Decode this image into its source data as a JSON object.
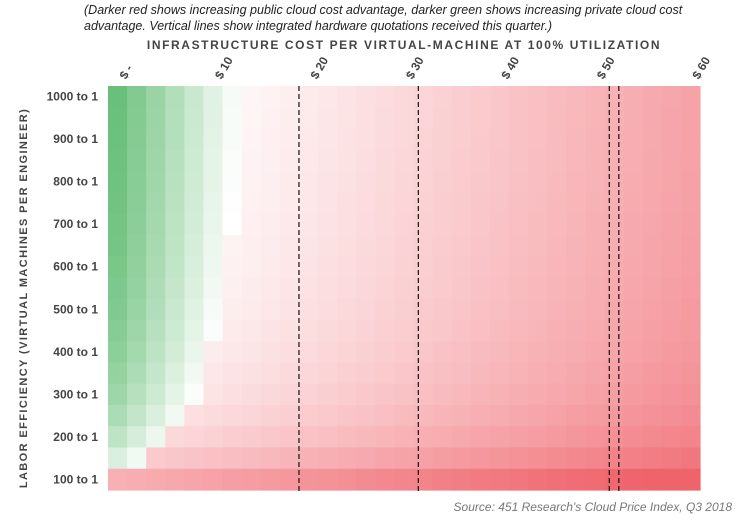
{
  "subtitle": "(Darker red shows increasing public cloud cost advantage, darker green shows increasing private cloud cost advantage. Vertical lines show integrated hardware quotations received this quarter.)",
  "source": "Source: 451 Research's Cloud Price Index, Q3 2018",
  "chart_data": {
    "type": "heatmap",
    "title": "",
    "xlabel": "INFRASTRUCTURE COST PER VIRTUAL-MACHINE AT 100% UTILIZATION",
    "ylabel": "LABOR EFFICIENCY (VIRTUAL MACHINES PER ENGINEER)",
    "x_range": [
      0,
      62
    ],
    "x_step": 2,
    "x_ticks": [
      {
        "value": 0,
        "label": "$ -"
      },
      {
        "value": 10,
        "label": "$ 10"
      },
      {
        "value": 20,
        "label": "$ 20"
      },
      {
        "value": 30,
        "label": "$ 30"
      },
      {
        "value": 40,
        "label": "$ 40"
      },
      {
        "value": 50,
        "label": "$ 50"
      },
      {
        "value": 60,
        "label": "$ 60"
      }
    ],
    "y_categories": [
      {
        "value": 1000,
        "label": "1000 to 1"
      },
      {
        "value": 950,
        "label": ""
      },
      {
        "value": 900,
        "label": "900 to 1"
      },
      {
        "value": 850,
        "label": ""
      },
      {
        "value": 800,
        "label": "800 to 1"
      },
      {
        "value": 750,
        "label": ""
      },
      {
        "value": 700,
        "label": "700 to 1"
      },
      {
        "value": 650,
        "label": ""
      },
      {
        "value": 600,
        "label": "600 to 1"
      },
      {
        "value": 550,
        "label": ""
      },
      {
        "value": 500,
        "label": "500 to 1"
      },
      {
        "value": 450,
        "label": ""
      },
      {
        "value": 400,
        "label": "400 to 1"
      },
      {
        "value": 350,
        "label": ""
      },
      {
        "value": 300,
        "label": "300 to 1"
      },
      {
        "value": 250,
        "label": ""
      },
      {
        "value": 200,
        "label": "200 to 1"
      },
      {
        "value": 150,
        "label": ""
      },
      {
        "value": 100,
        "label": "100 to 1"
      }
    ],
    "vertical_lines": [
      20,
      32.5,
      52.5,
      53.5
    ],
    "colors": {
      "private_advantage": "#5cba6e",
      "public_advantage": "#ef6068",
      "neutral": "#ffffff",
      "vertical_line": "#111111"
    },
    "grid": false,
    "legend": "none"
  }
}
